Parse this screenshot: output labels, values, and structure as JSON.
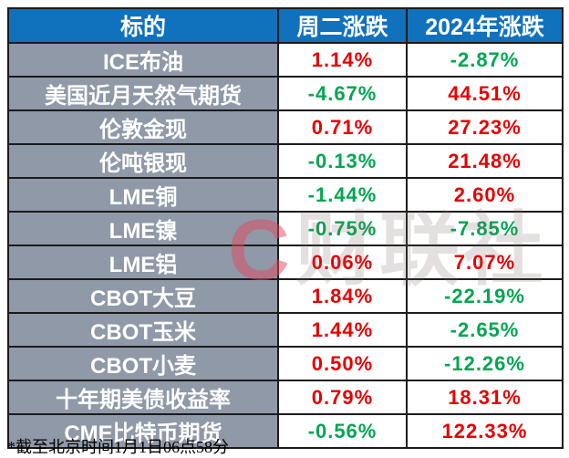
{
  "colors": {
    "header_bg": "#1071bd",
    "asset_column_bg": "#8f99a8",
    "cell_bg": "#ffffff",
    "border": "#1b1b1b",
    "up_red": "#e60000",
    "down_green": "#00a651",
    "watermark_pink": "#e2485c"
  },
  "table": {
    "columns": {
      "asset": "标的",
      "tue": "周二涨跌",
      "ytd": "2024年涨跌"
    },
    "rows": [
      {
        "label": "ICE布油",
        "tue": "1.14%",
        "tue_dir": "up",
        "ytd": "-2.87%",
        "ytd_dir": "down"
      },
      {
        "label": "美国近月天然气期货",
        "tue": "-4.67%",
        "tue_dir": "down",
        "ytd": "44.51%",
        "ytd_dir": "up"
      },
      {
        "label": "伦敦金现",
        "tue": "0.71%",
        "tue_dir": "up",
        "ytd": "27.23%",
        "ytd_dir": "up"
      },
      {
        "label": "伦吨银现",
        "tue": "-0.13%",
        "tue_dir": "down",
        "ytd": "21.48%",
        "ytd_dir": "up"
      },
      {
        "label": "LME铜",
        "tue": "-1.44%",
        "tue_dir": "down",
        "ytd": "2.60%",
        "ytd_dir": "up"
      },
      {
        "label": "LME镍",
        "tue": "-0.75%",
        "tue_dir": "down",
        "ytd": "-7.85%",
        "ytd_dir": "down"
      },
      {
        "label": "LME铝",
        "tue": "0.06%",
        "tue_dir": "up",
        "ytd": "7.07%",
        "ytd_dir": "up"
      },
      {
        "label": "CBOT大豆",
        "tue": "1.84%",
        "tue_dir": "up",
        "ytd": "-22.19%",
        "ytd_dir": "down"
      },
      {
        "label": "CBOT玉米",
        "tue": "1.44%",
        "tue_dir": "up",
        "ytd": "-2.65%",
        "ytd_dir": "down"
      },
      {
        "label": "CBOT小麦",
        "tue": "0.50%",
        "tue_dir": "up",
        "ytd": "-12.26%",
        "ytd_dir": "down"
      },
      {
        "label": "十年期美债收益率",
        "tue": "0.79%",
        "tue_dir": "up",
        "ytd": "18.31%",
        "ytd_dir": "up"
      },
      {
        "label": "CME比特币期货",
        "tue": "-0.56%",
        "tue_dir": "down",
        "ytd": "122.33%",
        "ytd_dir": "up"
      }
    ]
  },
  "footnote": "*截至北京时间1月1日06点58分",
  "watermark": {
    "logo": "C",
    "text": "财联社"
  },
  "chart_data": {
    "type": "table",
    "columns": [
      "标的",
      "周二涨跌",
      "2024年涨跌"
    ],
    "units": "%",
    "rows": [
      [
        "ICE布油",
        1.14,
        -2.87
      ],
      [
        "美国近月天然气期货",
        -4.67,
        44.51
      ],
      [
        "伦敦金现",
        0.71,
        27.23
      ],
      [
        "伦吨银现",
        -0.13,
        21.48
      ],
      [
        "LME铜",
        -1.44,
        2.6
      ],
      [
        "LME镍",
        -0.75,
        -7.85
      ],
      [
        "LME铝",
        0.06,
        7.07
      ],
      [
        "CBOT大豆",
        1.84,
        -22.19
      ],
      [
        "CBOT玉米",
        1.44,
        -2.65
      ],
      [
        "CBOT小麦",
        0.5,
        -12.26
      ],
      [
        "十年期美债收益率",
        0.79,
        18.31
      ],
      [
        "CME比特币期货",
        -0.56,
        122.33
      ]
    ],
    "layout_hints": {
      "positive_color": "red",
      "negative_color": "green",
      "footnote": "*截至北京时间1月1日06点58分"
    }
  }
}
